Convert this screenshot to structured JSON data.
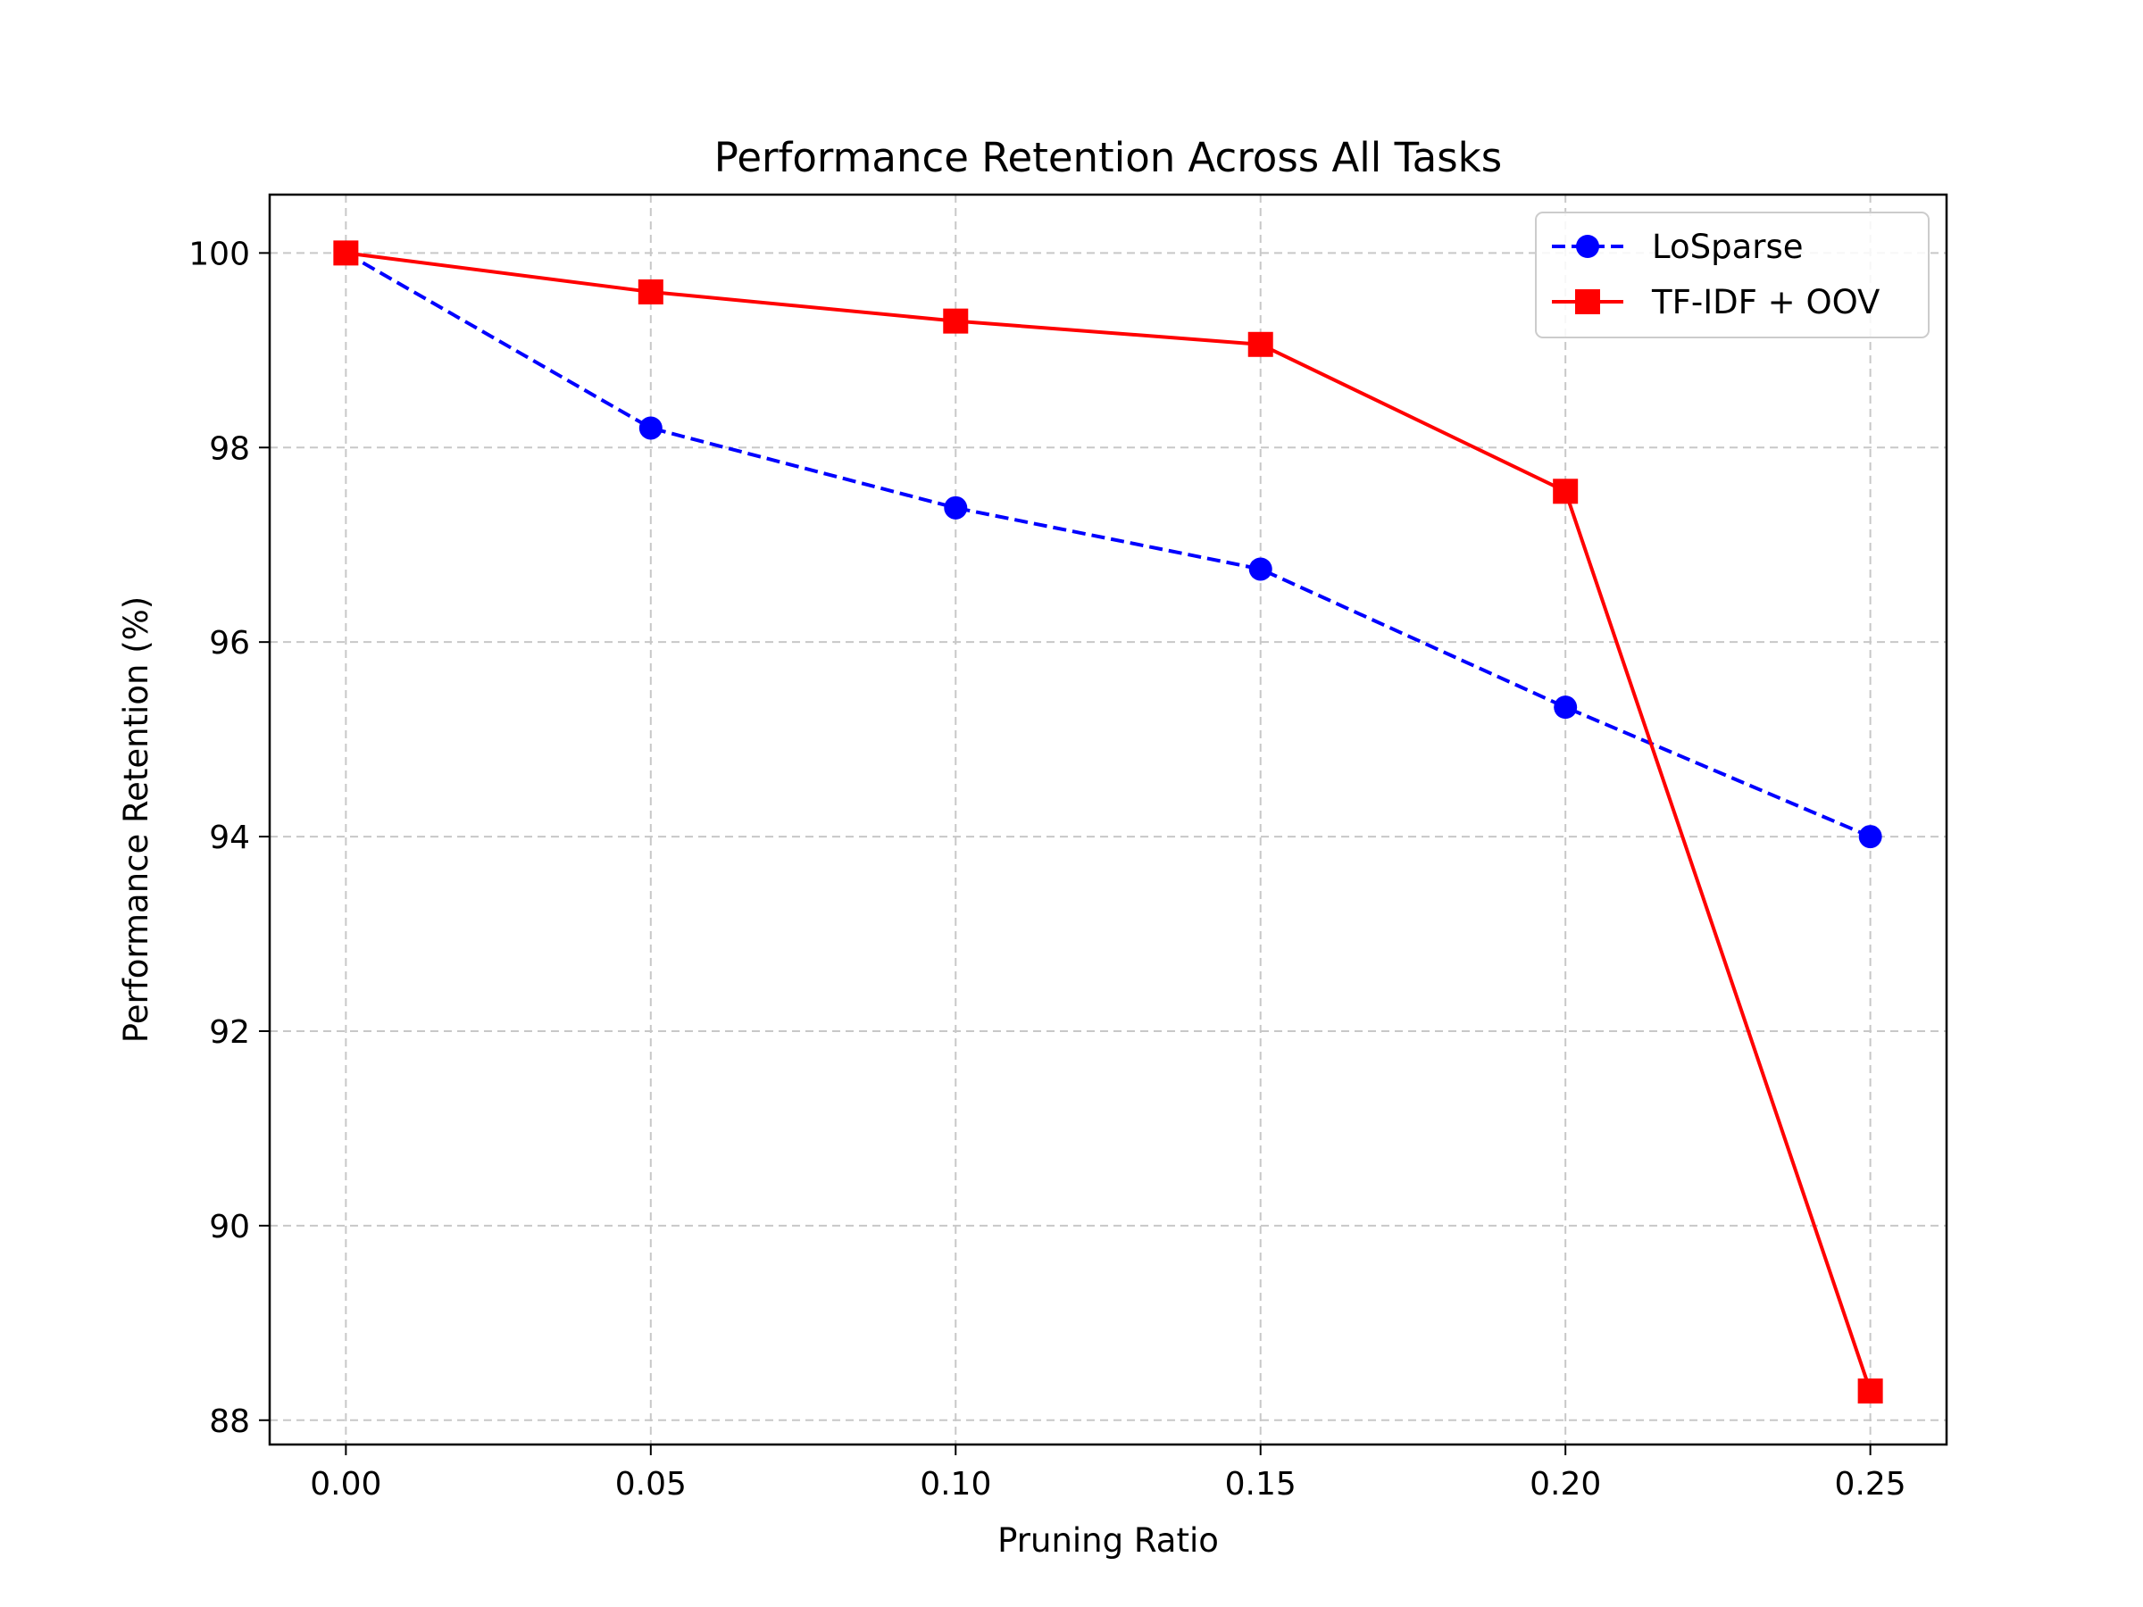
{
  "chart_data": {
    "type": "line",
    "title": "Performance Retention Across All Tasks",
    "xlabel": "Pruning Ratio",
    "ylabel": "Performance Retention (%)",
    "xlim": [
      -0.0125,
      0.2625
    ],
    "ylim": [
      87.75,
      100.6
    ],
    "x": [
      0.0,
      0.05,
      0.1,
      0.15,
      0.2,
      0.25
    ],
    "xticks": [
      "0.00",
      "0.05",
      "0.10",
      "0.15",
      "0.20",
      "0.25"
    ],
    "xtick_values": [
      0.0,
      0.05,
      0.1,
      0.15,
      0.2,
      0.25
    ],
    "yticks": [
      "88",
      "90",
      "92",
      "94",
      "96",
      "98",
      "100"
    ],
    "ytick_values": [
      88,
      90,
      92,
      94,
      96,
      98,
      100
    ],
    "grid": true,
    "legend_position": "top-right",
    "series": [
      {
        "name": "LoSparse",
        "values": [
          100.0,
          98.2,
          97.38,
          96.75,
          95.33,
          94.0
        ],
        "color": "#0000ff",
        "line_style": "dashed",
        "marker": "circle"
      },
      {
        "name": "TF-IDF + OOV",
        "values": [
          100.0,
          99.6,
          99.3,
          99.06,
          97.55,
          88.3
        ],
        "color": "#ff0000",
        "line_style": "solid",
        "marker": "square"
      }
    ]
  }
}
